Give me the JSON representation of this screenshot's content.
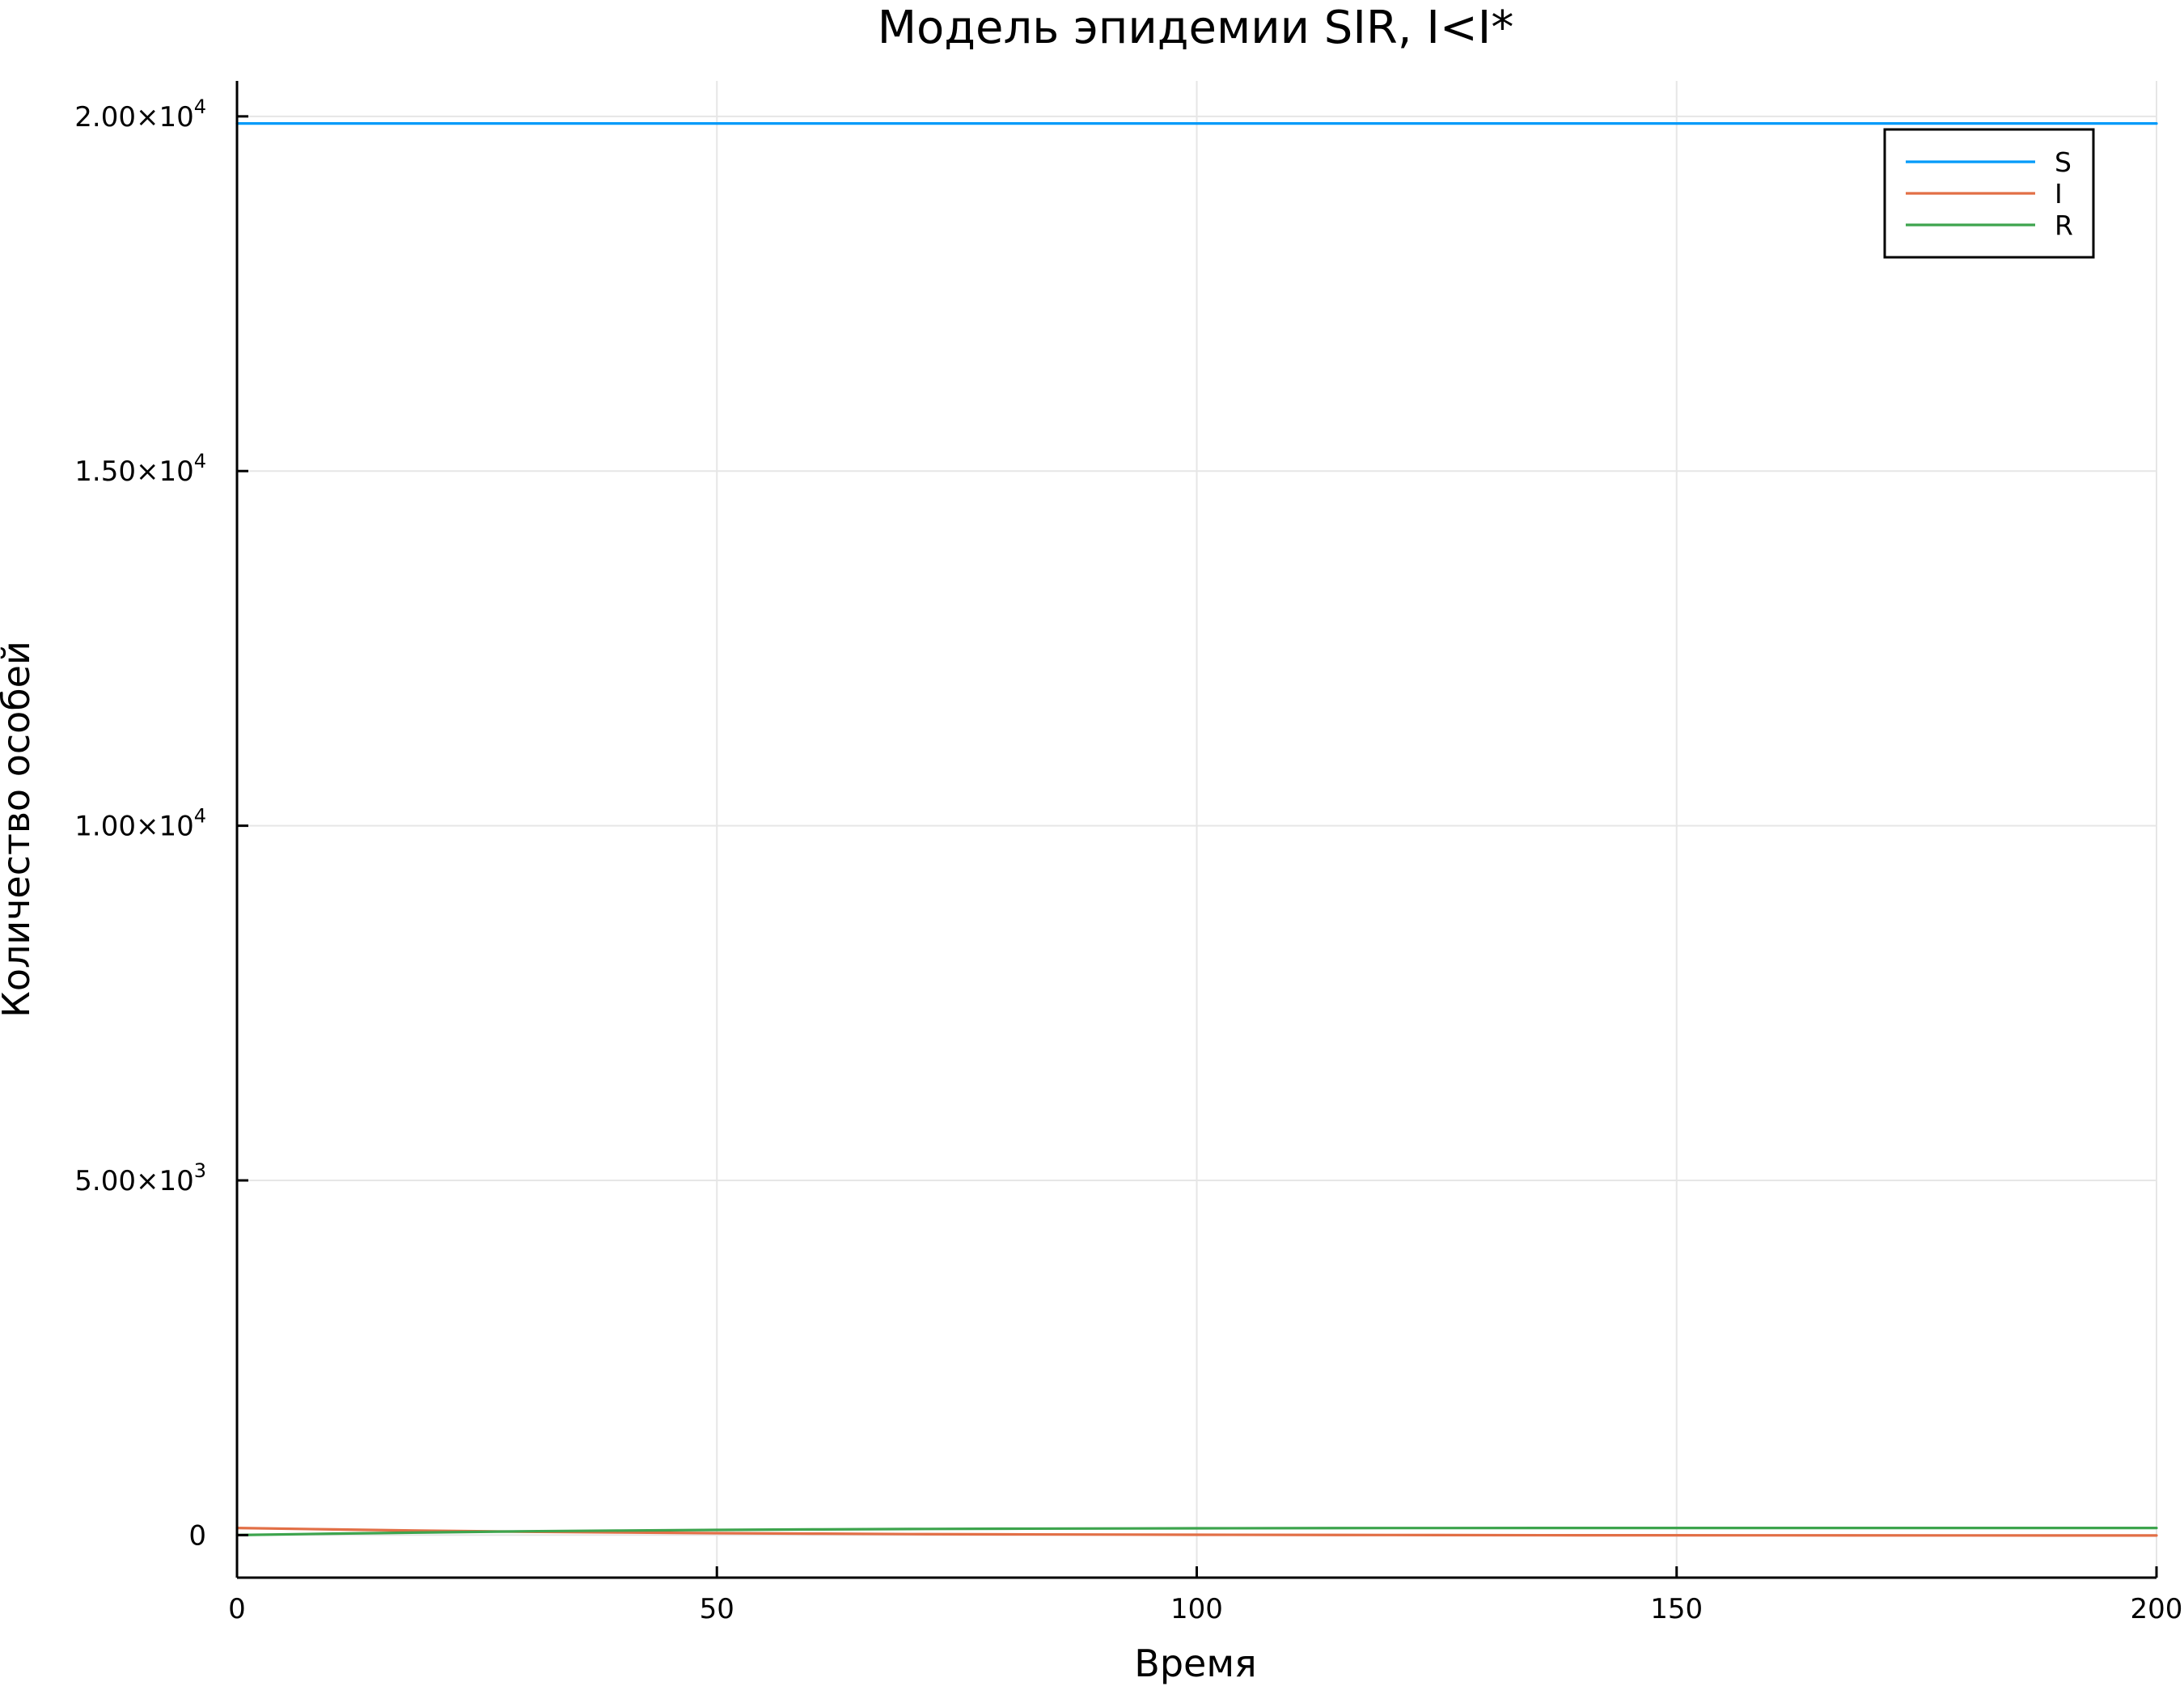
{
  "chart_data": {
    "type": "line",
    "title": "Модель эпидемии SIR, I<I*",
    "xlabel": "Время",
    "ylabel": "Количество особей",
    "xlim": [
      0,
      200
    ],
    "ylim": [
      -600,
      20500
    ],
    "xticks": [
      {
        "value": 0,
        "label": "0"
      },
      {
        "value": 50,
        "label": "50"
      },
      {
        "value": 100,
        "label": "100"
      },
      {
        "value": 150,
        "label": "150"
      },
      {
        "value": 200,
        "label": "200"
      }
    ],
    "yticks": [
      {
        "value": 0,
        "label": "0",
        "exp": ""
      },
      {
        "value": 5000,
        "label": "5.00×10",
        "exp": "3"
      },
      {
        "value": 10000,
        "label": "1.00×10",
        "exp": "4"
      },
      {
        "value": 15000,
        "label": "1.50×10",
        "exp": "4"
      },
      {
        "value": 20000,
        "label": "2.00×10",
        "exp": "4"
      }
    ],
    "grid": true,
    "legend_position": "top-right",
    "x": [
      0,
      10,
      20,
      30,
      40,
      50,
      60,
      70,
      80,
      100,
      120,
      140,
      160,
      180,
      200
    ],
    "series": [
      {
        "name": "S",
        "color": "#009af9",
        "values": [
          19900,
          19900,
          19900,
          19900,
          19900,
          19900,
          19900,
          19900,
          19900,
          19900,
          19900,
          19900,
          19900,
          19900,
          19900
        ]
      },
      {
        "name": "I",
        "color": "#e26f46",
        "values": [
          100,
          80,
          62,
          47,
          36,
          27,
          20,
          14,
          10,
          4,
          1,
          -2,
          -4,
          -5,
          -6
        ]
      },
      {
        "name": "R",
        "color": "#3da44d",
        "values": [
          0,
          21,
          38,
          53,
          64,
          73,
          80,
          86,
          90,
          96,
          99,
          100,
          100,
          100,
          100
        ]
      }
    ]
  }
}
